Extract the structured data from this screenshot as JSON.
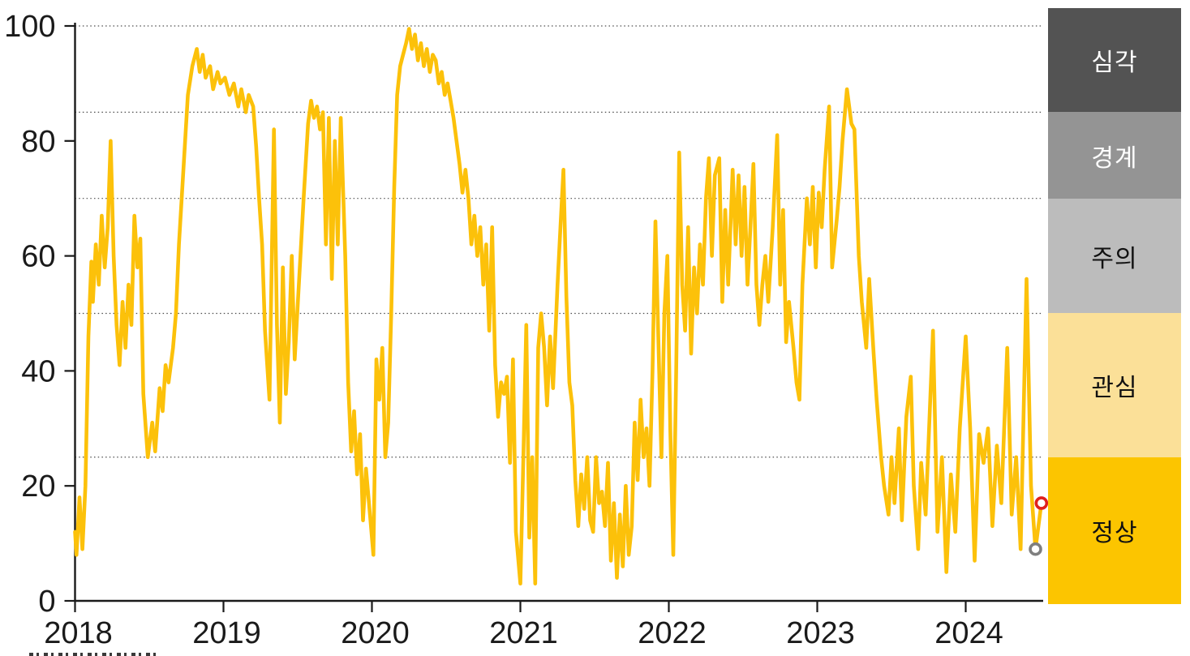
{
  "chart_data": {
    "type": "line",
    "title": "",
    "xlabel": "",
    "ylabel": "",
    "x_tick_labels": [
      "2018",
      "2019",
      "2020",
      "2021",
      "2022",
      "2023",
      "2024"
    ],
    "x_tick_years": [
      2018,
      2019,
      2020,
      2021,
      2022,
      2023,
      2024
    ],
    "y_tick_values": [
      0,
      20,
      40,
      60,
      80,
      100
    ],
    "ylim": [
      0,
      100
    ],
    "xlim": [
      2018.0,
      2024.53
    ],
    "gridline_values": [
      25,
      50,
      70,
      85,
      100
    ],
    "grid_style": "horizontal dotted",
    "line_color": "#FCC10A",
    "axis_color": "#1a1a1a",
    "legend_position": "right-column-zones",
    "zones": [
      {
        "label": "심각",
        "from": 85,
        "to": 100,
        "color": "#535353",
        "text_color": "#ffffff"
      },
      {
        "label": "경계",
        "from": 70,
        "to": 85,
        "color": "#949494",
        "text_color": "#ffffff"
      },
      {
        "label": "주의",
        "from": 50,
        "to": 70,
        "color": "#bcbcbc",
        "text_color": "#111111"
      },
      {
        "label": "관심",
        "from": 25,
        "to": 50,
        "color": "#fbe098",
        "text_color": "#111111"
      },
      {
        "label": "정상",
        "from": 0,
        "to": 25,
        "color": "#fcc500",
        "text_color": "#111111"
      }
    ],
    "markers": [
      {
        "name": "previous-point",
        "x": 2024.47,
        "y": 9,
        "ring_color": "#7f7f7f",
        "fill": "#ffffff"
      },
      {
        "name": "latest-point",
        "x": 2024.51,
        "y": 17,
        "ring_color": "#e0201c",
        "fill": "#ffffff"
      }
    ],
    "series": [
      {
        "name": "index",
        "color": "#FCC10A",
        "points": [
          [
            2018.0,
            12
          ],
          [
            2018.01,
            8
          ],
          [
            2018.03,
            18
          ],
          [
            2018.05,
            9
          ],
          [
            2018.07,
            20
          ],
          [
            2018.09,
            46
          ],
          [
            2018.11,
            59
          ],
          [
            2018.12,
            52
          ],
          [
            2018.14,
            62
          ],
          [
            2018.16,
            55
          ],
          [
            2018.18,
            67
          ],
          [
            2018.2,
            58
          ],
          [
            2018.22,
            65
          ],
          [
            2018.24,
            80
          ],
          [
            2018.26,
            60
          ],
          [
            2018.28,
            48
          ],
          [
            2018.3,
            41
          ],
          [
            2018.32,
            52
          ],
          [
            2018.34,
            44
          ],
          [
            2018.36,
            55
          ],
          [
            2018.38,
            48
          ],
          [
            2018.4,
            67
          ],
          [
            2018.42,
            58
          ],
          [
            2018.44,
            63
          ],
          [
            2018.46,
            36
          ],
          [
            2018.49,
            25
          ],
          [
            2018.52,
            31
          ],
          [
            2018.54,
            26
          ],
          [
            2018.57,
            37
          ],
          [
            2018.59,
            33
          ],
          [
            2018.61,
            41
          ],
          [
            2018.63,
            38
          ],
          [
            2018.66,
            44
          ],
          [
            2018.68,
            50
          ],
          [
            2018.7,
            62
          ],
          [
            2018.73,
            75
          ],
          [
            2018.76,
            88
          ],
          [
            2018.79,
            93
          ],
          [
            2018.82,
            96
          ],
          [
            2018.84,
            92
          ],
          [
            2018.86,
            95
          ],
          [
            2018.88,
            91
          ],
          [
            2018.91,
            93
          ],
          [
            2018.93,
            89
          ],
          [
            2018.96,
            92
          ],
          [
            2018.98,
            90
          ],
          [
            2019.01,
            91
          ],
          [
            2019.04,
            88
          ],
          [
            2019.07,
            90
          ],
          [
            2019.1,
            86
          ],
          [
            2019.12,
            89
          ],
          [
            2019.15,
            85
          ],
          [
            2019.17,
            88
          ],
          [
            2019.2,
            86
          ],
          [
            2019.22,
            79
          ],
          [
            2019.24,
            70
          ],
          [
            2019.26,
            62
          ],
          [
            2019.28,
            47
          ],
          [
            2019.31,
            35
          ],
          [
            2019.34,
            82
          ],
          [
            2019.36,
            48
          ],
          [
            2019.38,
            31
          ],
          [
            2019.4,
            58
          ],
          [
            2019.42,
            36
          ],
          [
            2019.44,
            45
          ],
          [
            2019.46,
            60
          ],
          [
            2019.48,
            42
          ],
          [
            2019.51,
            56
          ],
          [
            2019.54,
            70
          ],
          [
            2019.57,
            83
          ],
          [
            2019.59,
            87
          ],
          [
            2019.61,
            84
          ],
          [
            2019.63,
            86
          ],
          [
            2019.65,
            82
          ],
          [
            2019.67,
            85
          ],
          [
            2019.69,
            62
          ],
          [
            2019.71,
            84
          ],
          [
            2019.73,
            56
          ],
          [
            2019.75,
            80
          ],
          [
            2019.77,
            62
          ],
          [
            2019.79,
            84
          ],
          [
            2019.82,
            60
          ],
          [
            2019.84,
            38
          ],
          [
            2019.86,
            26
          ],
          [
            2019.88,
            33
          ],
          [
            2019.9,
            22
          ],
          [
            2019.92,
            29
          ],
          [
            2019.94,
            14
          ],
          [
            2019.96,
            23
          ],
          [
            2019.99,
            14
          ],
          [
            2020.01,
            8
          ],
          [
            2020.03,
            42
          ],
          [
            2020.05,
            35
          ],
          [
            2020.07,
            44
          ],
          [
            2020.09,
            25
          ],
          [
            2020.11,
            31
          ],
          [
            2020.13,
            50
          ],
          [
            2020.15,
            72
          ],
          [
            2020.17,
            88
          ],
          [
            2020.19,
            93
          ],
          [
            2020.21,
            95
          ],
          [
            2020.23,
            97
          ],
          [
            2020.25,
            99.5
          ],
          [
            2020.27,
            96
          ],
          [
            2020.29,
            98.5
          ],
          [
            2020.31,
            94
          ],
          [
            2020.33,
            97
          ],
          [
            2020.35,
            93
          ],
          [
            2020.37,
            96
          ],
          [
            2020.39,
            92
          ],
          [
            2020.41,
            95
          ],
          [
            2020.43,
            94
          ],
          [
            2020.45,
            90
          ],
          [
            2020.47,
            92
          ],
          [
            2020.49,
            88
          ],
          [
            2020.51,
            90
          ],
          [
            2020.53,
            87
          ],
          [
            2020.55,
            84
          ],
          [
            2020.57,
            80
          ],
          [
            2020.59,
            76
          ],
          [
            2020.61,
            71
          ],
          [
            2020.63,
            75
          ],
          [
            2020.65,
            70
          ],
          [
            2020.67,
            62
          ],
          [
            2020.69,
            67
          ],
          [
            2020.71,
            60
          ],
          [
            2020.73,
            65
          ],
          [
            2020.75,
            55
          ],
          [
            2020.77,
            62
          ],
          [
            2020.79,
            47
          ],
          [
            2020.81,
            65
          ],
          [
            2020.83,
            41
          ],
          [
            2020.85,
            32
          ],
          [
            2020.87,
            38
          ],
          [
            2020.89,
            36
          ],
          [
            2020.91,
            39
          ],
          [
            2020.93,
            24
          ],
          [
            2020.95,
            42
          ],
          [
            2020.97,
            12
          ],
          [
            2021.0,
            3
          ],
          [
            2021.02,
            25
          ],
          [
            2021.04,
            48
          ],
          [
            2021.06,
            11
          ],
          [
            2021.08,
            25
          ],
          [
            2021.1,
            3
          ],
          [
            2021.12,
            44
          ],
          [
            2021.14,
            50
          ],
          [
            2021.16,
            44
          ],
          [
            2021.18,
            34
          ],
          [
            2021.2,
            46
          ],
          [
            2021.22,
            37
          ],
          [
            2021.25,
            55
          ],
          [
            2021.27,
            65
          ],
          [
            2021.29,
            75
          ],
          [
            2021.31,
            53
          ],
          [
            2021.33,
            38
          ],
          [
            2021.35,
            34
          ],
          [
            2021.37,
            21
          ],
          [
            2021.39,
            13
          ],
          [
            2021.41,
            22
          ],
          [
            2021.43,
            16
          ],
          [
            2021.45,
            25
          ],
          [
            2021.47,
            14
          ],
          [
            2021.49,
            12
          ],
          [
            2021.51,
            25
          ],
          [
            2021.53,
            17
          ],
          [
            2021.55,
            19
          ],
          [
            2021.57,
            13
          ],
          [
            2021.59,
            24
          ],
          [
            2021.61,
            7
          ],
          [
            2021.63,
            17
          ],
          [
            2021.65,
            4
          ],
          [
            2021.67,
            15
          ],
          [
            2021.69,
            6
          ],
          [
            2021.71,
            20
          ],
          [
            2021.73,
            8
          ],
          [
            2021.75,
            13
          ],
          [
            2021.77,
            31
          ],
          [
            2021.79,
            21
          ],
          [
            2021.81,
            35
          ],
          [
            2021.83,
            25
          ],
          [
            2021.85,
            30
          ],
          [
            2021.87,
            20
          ],
          [
            2021.89,
            40
          ],
          [
            2021.91,
            66
          ],
          [
            2021.93,
            45
          ],
          [
            2021.95,
            25
          ],
          [
            2021.97,
            50
          ],
          [
            2021.99,
            60
          ],
          [
            2022.01,
            30
          ],
          [
            2022.03,
            8
          ],
          [
            2022.05,
            40
          ],
          [
            2022.07,
            78
          ],
          [
            2022.09,
            55
          ],
          [
            2022.11,
            47
          ],
          [
            2022.13,
            65
          ],
          [
            2022.15,
            43
          ],
          [
            2022.17,
            58
          ],
          [
            2022.19,
            50
          ],
          [
            2022.21,
            62
          ],
          [
            2022.23,
            55
          ],
          [
            2022.25,
            70
          ],
          [
            2022.27,
            77
          ],
          [
            2022.29,
            60
          ],
          [
            2022.31,
            74
          ],
          [
            2022.34,
            77
          ],
          [
            2022.36,
            52
          ],
          [
            2022.38,
            68
          ],
          [
            2022.4,
            55
          ],
          [
            2022.43,
            75
          ],
          [
            2022.45,
            62
          ],
          [
            2022.47,
            74
          ],
          [
            2022.49,
            60
          ],
          [
            2022.51,
            72
          ],
          [
            2022.53,
            55
          ],
          [
            2022.55,
            65
          ],
          [
            2022.57,
            76
          ],
          [
            2022.59,
            55
          ],
          [
            2022.61,
            48
          ],
          [
            2022.63,
            55
          ],
          [
            2022.65,
            60
          ],
          [
            2022.67,
            52
          ],
          [
            2022.7,
            65
          ],
          [
            2022.73,
            81
          ],
          [
            2022.75,
            55
          ],
          [
            2022.77,
            68
          ],
          [
            2022.79,
            45
          ],
          [
            2022.81,
            52
          ],
          [
            2022.84,
            44
          ],
          [
            2022.86,
            38
          ],
          [
            2022.88,
            35
          ],
          [
            2022.9,
            55
          ],
          [
            2022.93,
            70
          ],
          [
            2022.95,
            62
          ],
          [
            2022.97,
            72
          ],
          [
            2022.99,
            58
          ],
          [
            2023.01,
            71
          ],
          [
            2023.03,
            65
          ],
          [
            2023.05,
            75
          ],
          [
            2023.08,
            86
          ],
          [
            2023.1,
            58
          ],
          [
            2023.13,
            66
          ],
          [
            2023.15,
            72
          ],
          [
            2023.17,
            80
          ],
          [
            2023.2,
            89
          ],
          [
            2023.23,
            83
          ],
          [
            2023.25,
            82
          ],
          [
            2023.28,
            60
          ],
          [
            2023.3,
            52
          ],
          [
            2023.33,
            44
          ],
          [
            2023.35,
            56
          ],
          [
            2023.38,
            43
          ],
          [
            2023.4,
            35
          ],
          [
            2023.43,
            25
          ],
          [
            2023.45,
            20
          ],
          [
            2023.48,
            15
          ],
          [
            2023.5,
            25
          ],
          [
            2023.52,
            17
          ],
          [
            2023.55,
            30
          ],
          [
            2023.57,
            14
          ],
          [
            2023.6,
            32
          ],
          [
            2023.63,
            39
          ],
          [
            2023.65,
            20
          ],
          [
            2023.68,
            9
          ],
          [
            2023.7,
            24
          ],
          [
            2023.73,
            15
          ],
          [
            2023.78,
            47
          ],
          [
            2023.81,
            12
          ],
          [
            2023.84,
            25
          ],
          [
            2023.87,
            5
          ],
          [
            2023.9,
            22
          ],
          [
            2023.93,
            12
          ],
          [
            2023.96,
            30
          ],
          [
            2024.0,
            46
          ],
          [
            2024.03,
            30
          ],
          [
            2024.06,
            7
          ],
          [
            2024.09,
            29
          ],
          [
            2024.12,
            24
          ],
          [
            2024.15,
            30
          ],
          [
            2024.18,
            13
          ],
          [
            2024.21,
            27
          ],
          [
            2024.24,
            17
          ],
          [
            2024.28,
            44
          ],
          [
            2024.31,
            15
          ],
          [
            2024.34,
            25
          ],
          [
            2024.37,
            9
          ],
          [
            2024.41,
            56
          ],
          [
            2024.44,
            20
          ],
          [
            2024.47,
            9
          ],
          [
            2024.51,
            17
          ]
        ]
      }
    ]
  }
}
